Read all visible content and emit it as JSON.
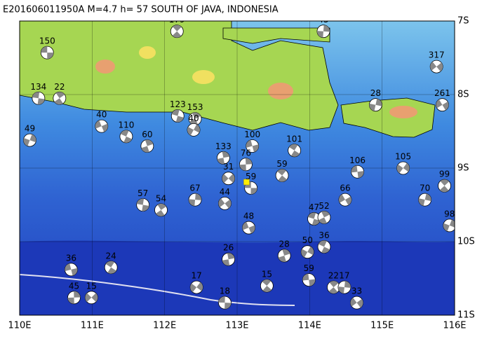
{
  "title": "E201606011950A M=4.7 h= 57 SOUTH OF JAVA, INDONESIA",
  "lon_ticks": [
    {
      "value": 110,
      "label": "110E"
    },
    {
      "value": 111,
      "label": "111E"
    },
    {
      "value": 112,
      "label": "112E"
    },
    {
      "value": 113,
      "label": "113E"
    },
    {
      "value": 114,
      "label": "114E"
    },
    {
      "value": 115,
      "label": "115E"
    },
    {
      "value": 116,
      "label": "116E"
    }
  ],
  "lat_ticks": [
    {
      "value": -7,
      "label": "7S"
    },
    {
      "value": -8,
      "label": "8S"
    },
    {
      "value": -9,
      "label": "9S"
    },
    {
      "value": -10,
      "label": "10S"
    },
    {
      "value": -11,
      "label": "11S"
    }
  ],
  "main_event": {
    "lon": 113.13,
    "lat": -9.19
  },
  "events": [
    {
      "label": 150,
      "lon": 110.38,
      "lat": -7.43
    },
    {
      "label": 179,
      "lon": 112.17,
      "lat": -7.14
    },
    {
      "label": 43,
      "lon": 114.19,
      "lat": -7.14
    },
    {
      "label": 317,
      "lon": 115.75,
      "lat": -7.62
    },
    {
      "label": 134,
      "lon": 110.26,
      "lat": -8.05
    },
    {
      "label": 22,
      "lon": 110.55,
      "lat": -8.05
    },
    {
      "label": 28,
      "lon": 114.91,
      "lat": -8.14
    },
    {
      "label": 261,
      "lon": 115.83,
      "lat": -8.14
    },
    {
      "label": 123,
      "lon": 112.18,
      "lat": -8.29
    },
    {
      "label": 153,
      "lon": 112.42,
      "lat": -8.33
    },
    {
      "label": 49,
      "lon": 110.14,
      "lat": -8.62
    },
    {
      "label": 40,
      "lon": 111.13,
      "lat": -8.43
    },
    {
      "label": 110,
      "lon": 111.47,
      "lat": -8.57
    },
    {
      "label": 60,
      "lon": 111.76,
      "lat": -8.7
    },
    {
      "label": 40,
      "lon": 112.4,
      "lat": -8.48
    },
    {
      "label": 100,
      "lon": 113.21,
      "lat": -8.7
    },
    {
      "label": 101,
      "lon": 113.79,
      "lat": -8.76
    },
    {
      "label": 133,
      "lon": 112.81,
      "lat": -8.86
    },
    {
      "label": 105,
      "lon": 115.29,
      "lat": -9.0
    },
    {
      "label": 106,
      "lon": 114.66,
      "lat": -9.05
    },
    {
      "label": 59,
      "lon": 113.62,
      "lat": -9.1
    },
    {
      "label": 76,
      "lon": 113.12,
      "lat": -8.95
    },
    {
      "label": 31,
      "lon": 112.88,
      "lat": -9.14
    },
    {
      "label": 59,
      "lon": 113.19,
      "lat": -9.27
    },
    {
      "label": 99,
      "lon": 115.86,
      "lat": -9.24
    },
    {
      "label": 67,
      "lon": 112.42,
      "lat": -9.43
    },
    {
      "label": 44,
      "lon": 112.83,
      "lat": -9.48
    },
    {
      "label": 57,
      "lon": 111.7,
      "lat": -9.5
    },
    {
      "label": 54,
      "lon": 111.95,
      "lat": -9.57
    },
    {
      "label": 70,
      "lon": 115.59,
      "lat": -9.43
    },
    {
      "label": 66,
      "lon": 114.49,
      "lat": -9.43
    },
    {
      "label": 47,
      "lon": 114.06,
      "lat": -9.69
    },
    {
      "label": 52,
      "lon": 114.2,
      "lat": -9.67
    },
    {
      "label": 98,
      "lon": 115.93,
      "lat": -9.78
    },
    {
      "label": 48,
      "lon": 113.16,
      "lat": -9.81
    },
    {
      "label": 36,
      "lon": 114.2,
      "lat": -10.07
    },
    {
      "label": 28,
      "lon": 113.65,
      "lat": -10.19
    },
    {
      "label": 50,
      "lon": 113.97,
      "lat": -10.14
    },
    {
      "label": 36,
      "lon": 110.71,
      "lat": -10.38
    },
    {
      "label": 24,
      "lon": 111.26,
      "lat": -10.35
    },
    {
      "label": 26,
      "lon": 112.88,
      "lat": -10.24
    },
    {
      "label": 17,
      "lon": 112.44,
      "lat": -10.62
    },
    {
      "label": 59,
      "lon": 113.99,
      "lat": -10.52
    },
    {
      "label": 15,
      "lon": 113.41,
      "lat": -10.6
    },
    {
      "label": 45,
      "lon": 110.75,
      "lat": -10.76
    },
    {
      "label": 15,
      "lon": 110.99,
      "lat": -10.76
    },
    {
      "label": 18,
      "lon": 112.83,
      "lat": -10.83
    },
    {
      "label": 22,
      "lon": 114.33,
      "lat": -10.62
    },
    {
      "label": 17,
      "lon": 114.48,
      "lat": -10.62
    },
    {
      "label": 33,
      "lon": 114.65,
      "lat": -10.83
    }
  ]
}
